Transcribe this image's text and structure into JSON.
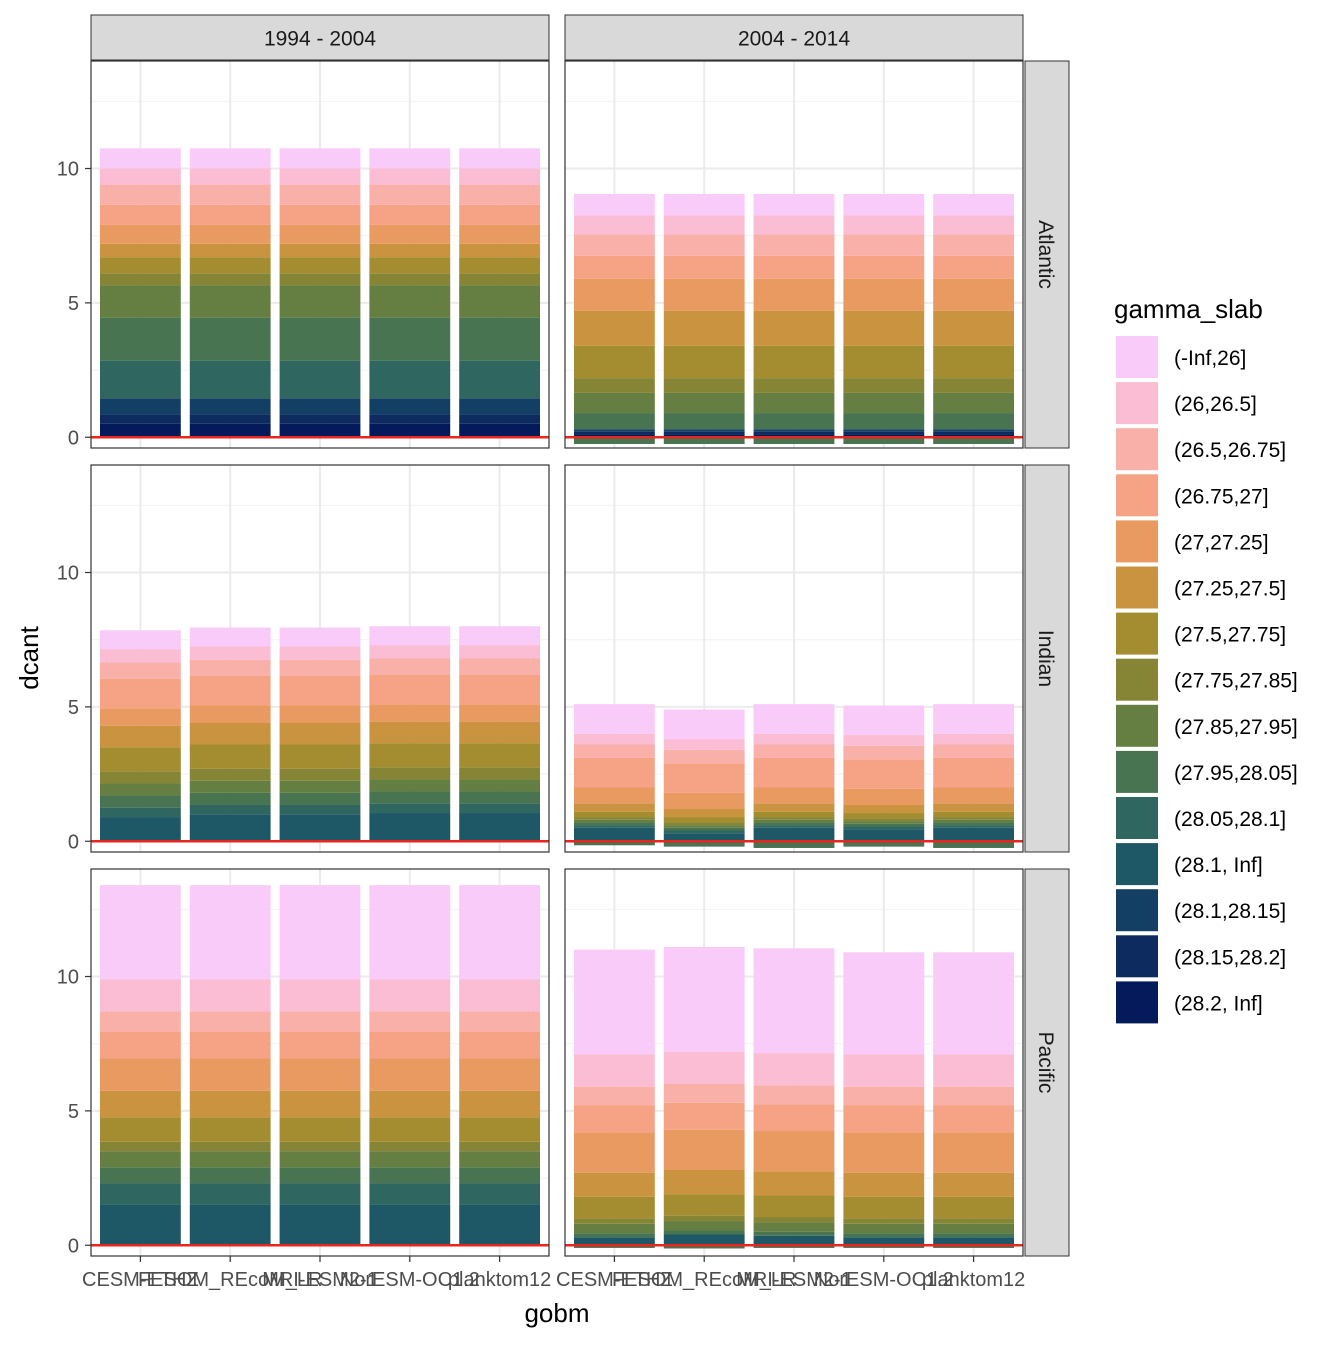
{
  "chart_data": {
    "type": "bar",
    "stacked": true,
    "xlabel": "gobm",
    "ylabel": "dcant",
    "ylim": [
      -0.4,
      14
    ],
    "yticks": [
      0,
      5,
      10
    ],
    "grid": true,
    "legend_position": "right",
    "legend_title": "gamma_slab",
    "col_facets": [
      "1994 - 2004",
      "2004 - 2014"
    ],
    "row_facets": [
      "Atlantic",
      "Indian",
      "Pacific"
    ],
    "categories": [
      "CESM-ETHZ",
      "FESOM_REcoM_LR",
      "MRI-ESM2-1",
      "NorESM-OC1.2",
      "planktom12"
    ],
    "tick_labels": [
      "CESM-ETHZ",
      "FESOM_REcoM_LR",
      "MRI-ESM2-1",
      "NorESM-OC1.2",
      "planktom12"
    ],
    "reference_line": {
      "y": 0,
      "color": "#e8251f"
    },
    "series": [
      {
        "name": "(-Inf,26]",
        "color": "#f8cbf8"
      },
      {
        "name": "(26,26.5]",
        "color": "#fbbdd3"
      },
      {
        "name": "(26.5,26.75]",
        "color": "#f9b0a9"
      },
      {
        "name": "(26.75,27]",
        "color": "#f5a384"
      },
      {
        "name": "(27,27.25]",
        "color": "#e89a61"
      },
      {
        "name": "(27.25,27.5]",
        "color": "#c9933f"
      },
      {
        "name": "(27.5,27.75]",
        "color": "#a48d31"
      },
      {
        "name": "(27.75,27.85]",
        "color": "#858535"
      },
      {
        "name": "(27.85,27.95]",
        "color": "#657e42"
      },
      {
        "name": "(27.95,28.05]",
        "color": "#487451"
      },
      {
        "name": "(28.05,28.1]",
        "color": "#2f6660"
      },
      {
        "name": "(28.1, Inf]",
        "color": "#1e5866"
      },
      {
        "name": "(28.1,28.15]",
        "color": "#143f64"
      },
      {
        "name": "(28.15,28.2]",
        "color": "#0d2b5e"
      },
      {
        "name": "(28.2, Inf]",
        "color": "#041a5a"
      }
    ],
    "panels": [
      {
        "row": "Atlantic",
        "col": "1994 - 2004",
        "values": [
          [
            0.75,
            0.75,
            0.75,
            0.75,
            0.75
          ],
          [
            0.6,
            0.6,
            0.6,
            0.6,
            0.6
          ],
          [
            0.75,
            0.75,
            0.75,
            0.75,
            0.75
          ],
          [
            0.75,
            0.75,
            0.75,
            0.75,
            0.75
          ],
          [
            0.7,
            0.7,
            0.7,
            0.7,
            0.7
          ],
          [
            0.5,
            0.5,
            0.5,
            0.5,
            0.5
          ],
          [
            0.6,
            0.6,
            0.6,
            0.6,
            0.6
          ],
          [
            0.45,
            0.45,
            0.45,
            0.45,
            0.45
          ],
          [
            1.2,
            1.2,
            1.2,
            1.2,
            1.2
          ],
          [
            1.6,
            1.6,
            1.6,
            1.6,
            1.6
          ],
          [
            1.4,
            1.4,
            1.4,
            1.4,
            1.4
          ],
          [
            0,
            0,
            0,
            0,
            0
          ],
          [
            0.6,
            0.6,
            0.6,
            0.6,
            0.6
          ],
          [
            0.35,
            0.35,
            0.35,
            0.35,
            0.35
          ],
          [
            0.5,
            0.5,
            0.5,
            0.5,
            0.5
          ]
        ]
      },
      {
        "row": "Atlantic",
        "col": "2004 - 2014",
        "values": [
          [
            0.8,
            0.8,
            0.8,
            0.8,
            0.8
          ],
          [
            0.7,
            0.7,
            0.7,
            0.7,
            0.7
          ],
          [
            0.8,
            0.8,
            0.8,
            0.8,
            0.8
          ],
          [
            0.85,
            0.85,
            0.85,
            0.85,
            0.85
          ],
          [
            1.2,
            1.2,
            1.2,
            1.2,
            1.2
          ],
          [
            1.3,
            1.3,
            1.3,
            1.3,
            1.3
          ],
          [
            1.2,
            1.2,
            1.2,
            1.2,
            1.2
          ],
          [
            0.55,
            0.55,
            0.55,
            0.55,
            0.55
          ],
          [
            0.75,
            0.75,
            0.75,
            0.75,
            0.75
          ],
          [
            0.6,
            0.6,
            0.6,
            0.6,
            0.6
          ],
          [
            0,
            0,
            0,
            0,
            0
          ],
          [
            0,
            0,
            0,
            0,
            0
          ],
          [
            0.1,
            0.1,
            0.1,
            0.1,
            0.1
          ],
          [
            0.1,
            0.1,
            0.1,
            0.1,
            0.1
          ],
          [
            0.1,
            0.1,
            0.1,
            0.1,
            0.1
          ]
        ],
        "negative": [
          0.25,
          0.25,
          0.25,
          0.25,
          0.25
        ]
      },
      {
        "row": "Indian",
        "col": "1994 - 2004",
        "values": [
          [
            0.7,
            0.7,
            0.7,
            0.7,
            0.7
          ],
          [
            0.5,
            0.5,
            0.5,
            0.5,
            0.5
          ],
          [
            0.6,
            0.6,
            0.6,
            0.6,
            0.6
          ],
          [
            1.1,
            1.1,
            1.1,
            1.1,
            1.1
          ],
          [
            0.65,
            0.65,
            0.65,
            0.65,
            0.65
          ],
          [
            0.8,
            0.8,
            0.8,
            0.8,
            0.8
          ],
          [
            0.9,
            0.9,
            0.9,
            0.9,
            0.9
          ],
          [
            0.45,
            0.45,
            0.45,
            0.45,
            0.45
          ],
          [
            0.45,
            0.45,
            0.45,
            0.45,
            0.45
          ],
          [
            0.45,
            0.45,
            0.45,
            0.45,
            0.45
          ],
          [
            0.35,
            0.35,
            0.35,
            0.35,
            0.35
          ],
          [
            0.9,
            1.0,
            1.0,
            1.05,
            1.05
          ],
          [
            0,
            0,
            0,
            0,
            0
          ],
          [
            0,
            0,
            0,
            0,
            0
          ],
          [
            0,
            0,
            0,
            0,
            0
          ]
        ]
      },
      {
        "row": "Indian",
        "col": "2004 - 2014",
        "values": [
          [
            1.1,
            1.1,
            1.1,
            1.1,
            1.1
          ],
          [
            0.4,
            0.4,
            0.4,
            0.4,
            0.4
          ],
          [
            0.5,
            0.5,
            0.5,
            0.5,
            0.5
          ],
          [
            1.1,
            1.1,
            1.1,
            1.1,
            1.1
          ],
          [
            0.6,
            0.6,
            0.6,
            0.6,
            0.6
          ],
          [
            0.3,
            0.3,
            0.3,
            0.3,
            0.3
          ],
          [
            0.2,
            0.2,
            0.2,
            0.2,
            0.2
          ],
          [
            0.1,
            0.1,
            0.1,
            0.1,
            0.1
          ],
          [
            0.1,
            0.1,
            0.1,
            0.1,
            0.1
          ],
          [
            0.1,
            0.1,
            0.1,
            0.1,
            0.1
          ],
          [
            0.1,
            0.1,
            0.1,
            0.1,
            0.1
          ],
          [
            0.5,
            0.3,
            0.5,
            0.45,
            0.5
          ],
          [
            0,
            0,
            0,
            0,
            0
          ],
          [
            0,
            0,
            0,
            0,
            0
          ],
          [
            0,
            0,
            0,
            0,
            0
          ]
        ],
        "negative": [
          0.15,
          0.2,
          0.25,
          0.2,
          0.25
        ]
      },
      {
        "row": "Pacific",
        "col": "1994 - 2004",
        "values": [
          [
            3.5,
            3.5,
            3.5,
            3.5,
            3.5
          ],
          [
            1.2,
            1.2,
            1.2,
            1.2,
            1.2
          ],
          [
            0.75,
            0.75,
            0.75,
            0.75,
            0.75
          ],
          [
            1.0,
            1.0,
            1.0,
            1.0,
            1.0
          ],
          [
            1.2,
            1.2,
            1.2,
            1.2,
            1.2
          ],
          [
            1.0,
            1.0,
            1.0,
            1.0,
            1.0
          ],
          [
            0.9,
            0.9,
            0.9,
            0.9,
            0.9
          ],
          [
            0.35,
            0.35,
            0.35,
            0.35,
            0.35
          ],
          [
            0.6,
            0.6,
            0.6,
            0.6,
            0.6
          ],
          [
            0.6,
            0.6,
            0.6,
            0.6,
            0.6
          ],
          [
            0.8,
            0.8,
            0.8,
            0.8,
            0.8
          ],
          [
            1.5,
            1.5,
            1.5,
            1.5,
            1.5
          ],
          [
            0,
            0,
            0,
            0,
            0
          ],
          [
            0,
            0,
            0,
            0,
            0
          ],
          [
            0,
            0,
            0,
            0,
            0
          ]
        ]
      },
      {
        "row": "Pacific",
        "col": "2004 - 2014",
        "values": [
          [
            3.9,
            3.9,
            3.9,
            3.8,
            3.8
          ],
          [
            1.2,
            1.2,
            1.2,
            1.2,
            1.2
          ],
          [
            0.7,
            0.7,
            0.7,
            0.7,
            0.7
          ],
          [
            1.0,
            1.0,
            1.0,
            1.0,
            1.0
          ],
          [
            1.5,
            1.5,
            1.5,
            1.5,
            1.5
          ],
          [
            0.9,
            0.9,
            0.9,
            0.9,
            0.9
          ],
          [
            0.8,
            0.8,
            0.8,
            0.8,
            0.8
          ],
          [
            0.2,
            0.2,
            0.2,
            0.2,
            0.2
          ],
          [
            0.35,
            0.35,
            0.35,
            0.35,
            0.35
          ],
          [
            0.15,
            0.15,
            0.15,
            0.15,
            0.15
          ],
          [
            0,
            0,
            0,
            0,
            0
          ],
          [
            0.3,
            0.4,
            0.35,
            0.3,
            0.3
          ],
          [
            0,
            0,
            0,
            0,
            0
          ],
          [
            0,
            0,
            0,
            0,
            0
          ],
          [
            0,
            0,
            0,
            0,
            0
          ]
        ],
        "negative": [
          0.1,
          0.12,
          0.1,
          0.1,
          0.1
        ]
      }
    ]
  }
}
